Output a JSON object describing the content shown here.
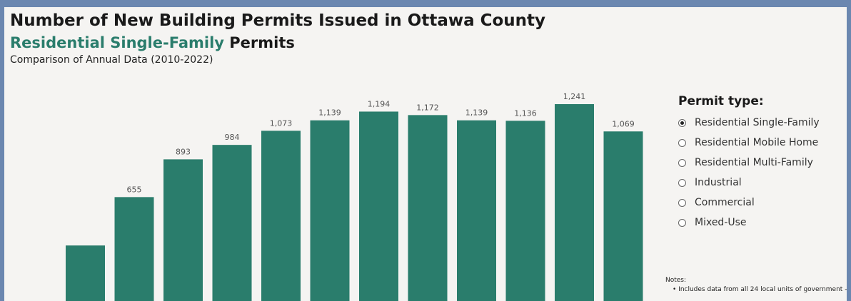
{
  "header": {
    "title": "Number of New Building Permits Issued in Ottawa County",
    "subtitle_accent": "Residential Single-Family",
    "subtitle_rest": " Permits",
    "caption": "Comparison of Annual Data (2010-2022)"
  },
  "legend": {
    "title": "Permit type:",
    "options": [
      {
        "label": "Residential Single-Family",
        "selected": true
      },
      {
        "label": "Residential Mobile Home",
        "selected": false
      },
      {
        "label": "Residential Multi-Family",
        "selected": false
      },
      {
        "label": "Industrial",
        "selected": false
      },
      {
        "label": "Commercial",
        "selected": false
      },
      {
        "label": "Mixed-Use",
        "selected": false
      }
    ]
  },
  "notes": {
    "heading": "Notes:",
    "bullet": "• Includes data from all 24 local units of government -"
  },
  "chart_data": {
    "type": "bar",
    "series": [
      {
        "values": [
          350,
          655,
          893,
          984,
          1073,
          1139,
          1194,
          1172,
          1139,
          1136,
          1241,
          1069
        ]
      }
    ],
    "labels": [
      "",
      "655",
      "893",
      "984",
      "1,073",
      "1,139",
      "1,194",
      "1,172",
      "1,139",
      "1,136",
      "1,241",
      "1,069"
    ],
    "ylim": [
      0,
      1300
    ],
    "grid": false,
    "bar_color": "#2a7d6c"
  }
}
